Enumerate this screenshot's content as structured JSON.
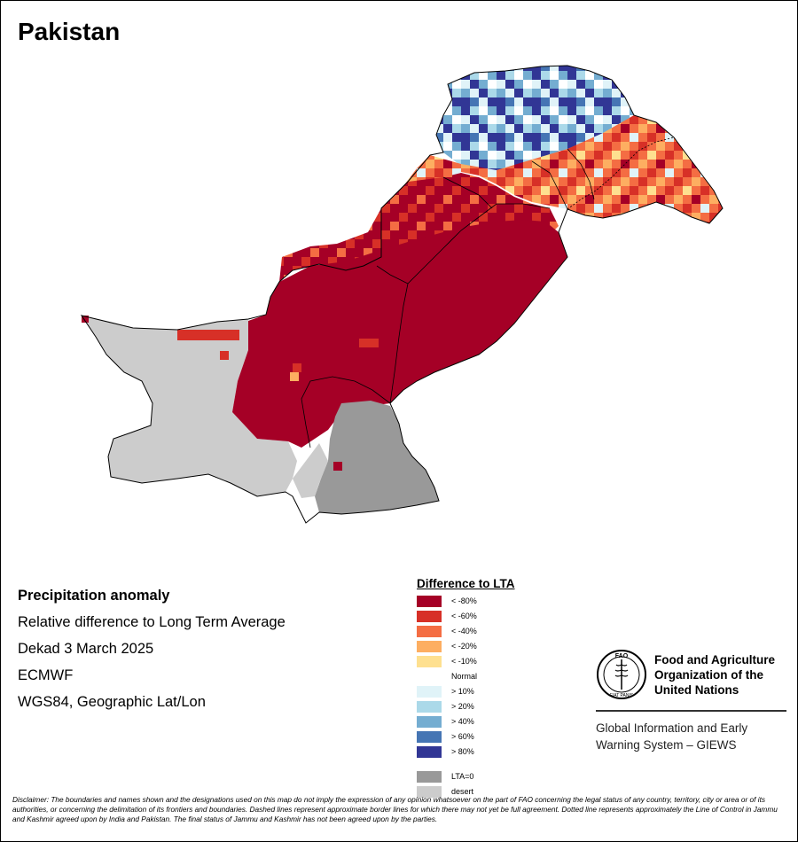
{
  "title": "Pakistan",
  "info": {
    "heading": "Precipitation anomaly",
    "line1": "Relative difference to Long Term Average",
    "line2": "Dekad 3 March 2025",
    "line3": "ECMWF",
    "line4": "WGS84, Geographic Lat/Lon"
  },
  "legend": {
    "title": "Difference to LTA",
    "items": [
      {
        "label": "< -80%",
        "color": "#a50026"
      },
      {
        "label": "< -60%",
        "color": "#d73027"
      },
      {
        "label": "< -40%",
        "color": "#f46d43"
      },
      {
        "label": "< -20%",
        "color": "#fdae61"
      },
      {
        "label": "< -10%",
        "color": "#fee090"
      },
      {
        "label": "Normal",
        "color": "#ffffff"
      },
      {
        "label": "> 10%",
        "color": "#e0f3f8"
      },
      {
        "label": "> 20%",
        "color": "#abd9e9"
      },
      {
        "label": "> 40%",
        "color": "#74add1"
      },
      {
        "label": "> 60%",
        "color": "#4575b4"
      },
      {
        "label": "> 80%",
        "color": "#313695"
      },
      {
        "label": "LTA=0",
        "color": "#999999"
      },
      {
        "label": "desert",
        "color": "#cccccc"
      }
    ]
  },
  "fao": {
    "name_line1": "Food and Agriculture",
    "name_line2": "Organization of the",
    "name_line3": "United Nations",
    "giews_line1": "Global Information and Early",
    "giews_line2": "Warning System – GIEWS",
    "logo_letters": "FAO",
    "logo_motto": "FIAT PANIS"
  },
  "disclaimer": "Disclaimer: The boundaries and names shown and the designations used on this map do not imply the expression of any opinion whatsoever on the part of FAO concerning the legal status of any country, territory, city or area or of its authorities, or concerning the delimitation of its frontiers and boundaries. Dashed lines represent approximate border lines for which there may not yet be full agreement. Dotted line represents approximately the Line of Control in Jammu and Kashmir agreed upon by India and Pakistan. The final status of Jammu and Kashmir has not been agreed upon by the parties."
}
